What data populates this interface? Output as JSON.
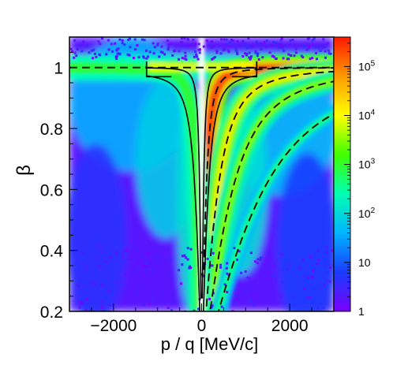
{
  "chart_data": {
    "type": "heatmap",
    "xlabel": "p / q [MeV/c]",
    "ylabel": "β",
    "xlim": [
      -3000,
      3000
    ],
    "ylim": [
      0.2,
      1.1
    ],
    "x_ticks": [
      -2000,
      0,
      2000
    ],
    "x_tick_labels": [
      "−2000",
      "0",
      "2000"
    ],
    "y_ticks": [
      0.2,
      0.4,
      0.6,
      0.8,
      1.0
    ],
    "y_tick_labels": [
      "0.2",
      "0.4",
      "0.6",
      "0.8",
      "1"
    ],
    "z_scale": "log",
    "zlim": [
      1,
      400000
    ],
    "colorbar_ticks": [
      1,
      10,
      100,
      1000,
      10000,
      100000
    ],
    "colorbar_tick_labels": [
      "1",
      "10",
      "10^2",
      "10^3",
      "10^4",
      "10^5"
    ],
    "colormap": [
      "#7a00ff",
      "#1a3cff",
      "#00b4ff",
      "#00ffb4",
      "#40ff00",
      "#ffff00",
      "#ff9a00",
      "#ff1a00"
    ],
    "expected_bands_dashed_masses_MeV": [
      0,
      139.57,
      493.68,
      938.27,
      1875.6
    ],
    "expected_bands": [
      {
        "particle_mass_MeV": 0,
        "x": [
          -3000,
          3000
        ],
        "y": [
          1.0,
          1.0
        ]
      },
      {
        "particle_mass_MeV": 139.57,
        "x": [
          150,
          300,
          600,
          1000,
          2000,
          3000
        ],
        "y": [
          0.732,
          0.907,
          0.974,
          0.99,
          0.998,
          0.999
        ]
      },
      {
        "particle_mass_MeV": 493.68,
        "x": [
          200,
          400,
          800,
          1500,
          2000,
          3000
        ],
        "y": [
          0.375,
          0.63,
          0.851,
          0.95,
          0.971,
          0.987
        ]
      },
      {
        "particle_mass_MeV": 938.27,
        "x": [
          250,
          500,
          1000,
          1500,
          2000,
          3000
        ],
        "y": [
          0.258,
          0.47,
          0.729,
          0.848,
          0.905,
          0.954
        ]
      },
      {
        "particle_mass_MeV": 1875.6,
        "x": [
          400,
          800,
          1200,
          2000,
          2500,
          3000
        ],
        "y": [
          0.209,
          0.392,
          0.539,
          0.729,
          0.8,
          0.848
        ]
      }
    ],
    "selection_windows": [
      {
        "side": "negative",
        "x_range": [
          -1250,
          0
        ],
        "y_top": 1.02,
        "y_low_at_edge": 0.98
      },
      {
        "side": "positive",
        "x_range": [
          0,
          1250
        ],
        "y_top": 1.02,
        "y_low_at_edge": 0.98
      }
    ]
  }
}
